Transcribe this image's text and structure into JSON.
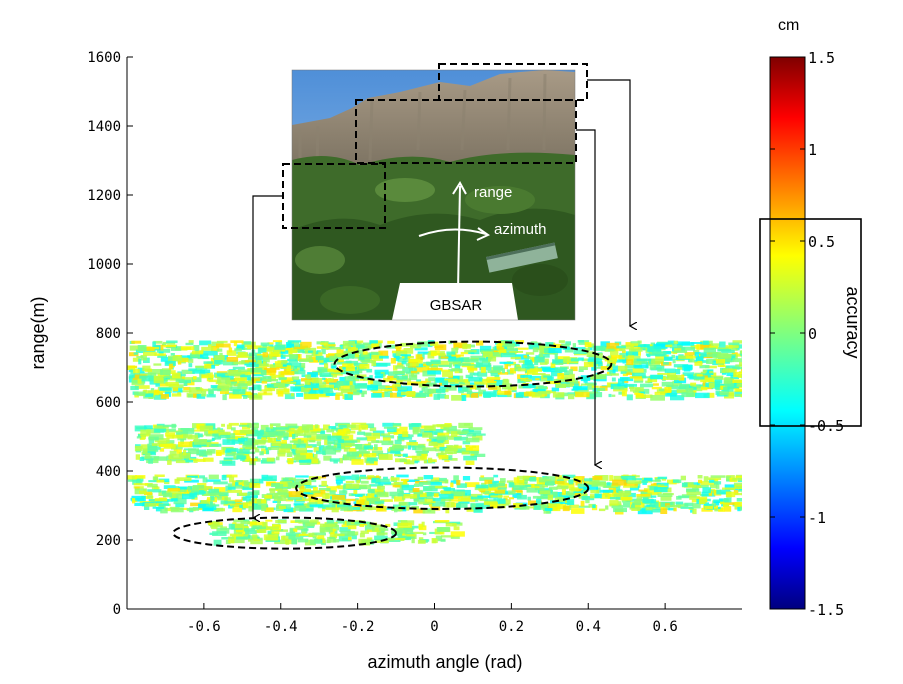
{
  "chart_data": {
    "type": "scatter",
    "xlabel": "azimuth angle (rad)",
    "ylabel": "range(m)",
    "xlim": [
      -0.8,
      0.8
    ],
    "ylim": [
      0,
      1600
    ],
    "x_ticks": [
      "-0.6",
      "-0.4",
      "-0.2",
      "0",
      "0.2",
      "0.4",
      "0.6"
    ],
    "x_tick_values": [
      -0.6,
      -0.4,
      -0.2,
      0,
      0.2,
      0.4,
      0.6
    ],
    "y_ticks": [
      "0",
      "200",
      "400",
      "600",
      "800",
      "1000",
      "1200",
      "1400",
      "1600"
    ],
    "y_tick_values": [
      0,
      200,
      400,
      600,
      800,
      1000,
      1200,
      1400,
      1600
    ],
    "colorbar": {
      "label": "accuracy",
      "unit": "cm",
      "ticks": [
        "1.5",
        "1",
        "0.5",
        "0",
        "-0.5",
        "-1",
        "-1.5"
      ],
      "tick_values": [
        1.5,
        1,
        0.5,
        0,
        -0.5,
        -1,
        -1.5
      ],
      "range": [
        -1.5,
        1.5
      ],
      "highlight_range": [
        -0.5,
        0.5
      ]
    },
    "bands": [
      {
        "x_range": [
          -0.8,
          0.8
        ],
        "y_range": [
          620,
          780
        ],
        "accuracy_range": [
          -0.4,
          0.5
        ]
      },
      {
        "x_range": [
          -0.78,
          0.1
        ],
        "y_range": [
          430,
          540
        ],
        "accuracy_range": [
          -0.3,
          0.4
        ]
      },
      {
        "x_range": [
          -0.8,
          0.8
        ],
        "y_range": [
          290,
          390
        ],
        "accuracy_range": [
          -0.4,
          0.5
        ]
      },
      {
        "x_range": [
          -0.6,
          0.05
        ],
        "y_range": [
          200,
          260
        ],
        "accuracy_range": [
          -0.2,
          0.4
        ]
      }
    ],
    "ellipses": [
      {
        "cx": 0.1,
        "cy": 710,
        "rx": 0.36,
        "ry": 65
      },
      {
        "cx": 0.02,
        "cy": 350,
        "rx": 0.38,
        "ry": 60
      },
      {
        "cx": -0.39,
        "cy": 220,
        "rx": 0.29,
        "ry": 45
      }
    ],
    "inset": {
      "labels": {
        "range": "range",
        "azimuth": "azimuth",
        "sensor": "GBSAR"
      }
    }
  }
}
